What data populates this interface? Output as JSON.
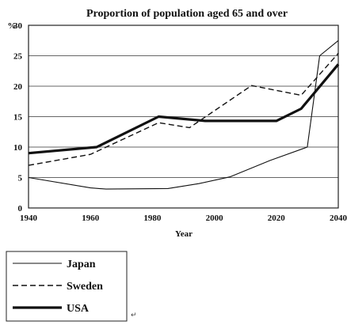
{
  "chart_data": {
    "type": "line",
    "title": "Proportion of population aged 65 and over",
    "ylabel": "%",
    "xlabel": "Year",
    "xlim": [
      1940,
      2040
    ],
    "ylim": [
      0,
      30
    ],
    "x_ticks": [
      "1940",
      "1960",
      "1980",
      "2000",
      "2020",
      "2040"
    ],
    "y_ticks": [
      "0",
      "5",
      "10",
      "15",
      "20",
      "25",
      "30"
    ],
    "grid": "horizontal",
    "legend_position": "bottom-left",
    "series": [
      {
        "name": "Japan",
        "style": "thin-solid",
        "points": [
          [
            1940,
            5
          ],
          [
            1960,
            3.3
          ],
          [
            1965,
            3.1
          ],
          [
            1985,
            3.2
          ],
          [
            1995,
            4
          ],
          [
            2005,
            5.1
          ],
          [
            2018,
            7.8
          ],
          [
            2030,
            10
          ],
          [
            2034,
            25
          ],
          [
            2040,
            27.5
          ]
        ]
      },
      {
        "name": "Sweden",
        "style": "dashed",
        "points": [
          [
            1940,
            7
          ],
          [
            1960,
            8.8
          ],
          [
            1982,
            14
          ],
          [
            1992,
            13.2
          ],
          [
            2012,
            20.1
          ],
          [
            2028,
            18.5
          ],
          [
            2040,
            25.4
          ]
        ]
      },
      {
        "name": "USA",
        "style": "thick-solid",
        "points": [
          [
            1940,
            9
          ],
          [
            1962,
            10
          ],
          [
            1982,
            15
          ],
          [
            1997,
            14.3
          ],
          [
            2020,
            14.3
          ],
          [
            2028,
            16.3
          ],
          [
            2040,
            23.6
          ]
        ]
      }
    ]
  },
  "footer_mark": "↵"
}
